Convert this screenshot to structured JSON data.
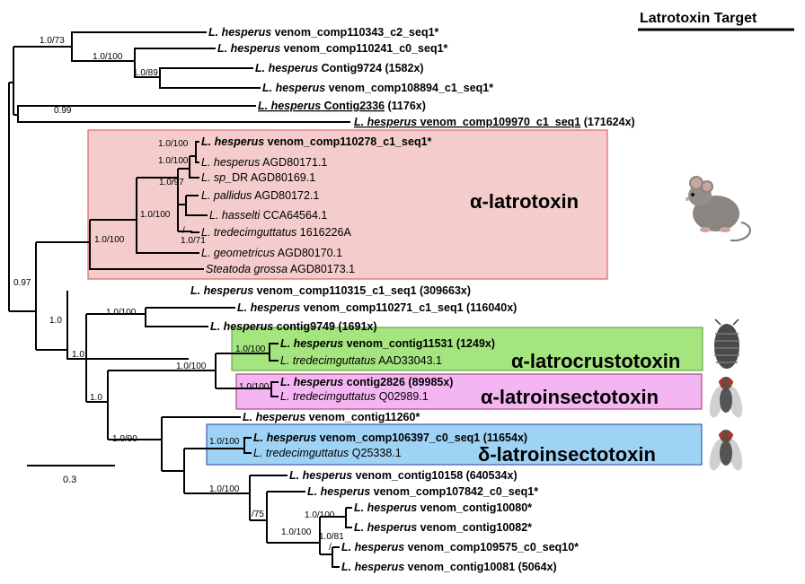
{
  "title": "Latrotoxin Target",
  "scale_bar_label": "0.3",
  "leaves": {
    "l01": [
      {
        "t": "L. hesperus",
        "b": true,
        "i": true
      },
      {
        "t": " venom_comp110343_c2_seq1*",
        "b": true
      }
    ],
    "l02": [
      {
        "t": "L. hesperus",
        "b": true,
        "i": true
      },
      {
        "t": " venom_comp110241_c0_seq1*",
        "b": true
      }
    ],
    "l03": [
      {
        "t": "L. hesperus",
        "b": true,
        "i": true
      },
      {
        "t": " Contig9724 (1582x)",
        "b": true
      }
    ],
    "l04": [
      {
        "t": "L. hesperus",
        "b": true,
        "i": true
      },
      {
        "t": " venom_comp108894_c1_seq1*",
        "b": true
      }
    ],
    "l05": [
      {
        "t": "L. hesperus",
        "b": true,
        "i": true,
        "u": true
      },
      {
        "t": " Contig2336",
        "b": true,
        "u": true
      },
      {
        "t": " (1176x)",
        "b": true
      }
    ],
    "l06": [
      {
        "t": "L. hesperus",
        "b": true,
        "i": true,
        "u": true
      },
      {
        "t": " venom_comp109970_c1_seq1",
        "b": true,
        "u": true
      },
      {
        "t": " (171624x)",
        "b": true
      }
    ],
    "l07": [
      {
        "t": "L. hesperus",
        "b": true,
        "i": true
      },
      {
        "t": " venom_comp110278_c1_seq1*",
        "b": true
      }
    ],
    "l08": [
      {
        "t": "L. hesperus",
        "i": true
      },
      {
        "t": " AGD80171.1"
      }
    ],
    "l09": [
      {
        "t": "L. sp_",
        "i": true
      },
      {
        "t": "DR AGD80169.1"
      }
    ],
    "l10": [
      {
        "t": "L. pallidus",
        "i": true
      },
      {
        "t": " AGD80172.1"
      }
    ],
    "l11": [
      {
        "t": "L. hasselti",
        "i": true
      },
      {
        "t": " CCA64564.1"
      }
    ],
    "l12": [
      {
        "t": "L. tredecimguttatus",
        "i": true
      },
      {
        "t": " 1616226A"
      }
    ],
    "l13": [
      {
        "t": "L. geometricus",
        "i": true
      },
      {
        "t": " AGD80170.1"
      }
    ],
    "l14": [
      {
        "t": "Steatoda grossa",
        "i": true
      },
      {
        "t": " AGD80173.1"
      }
    ],
    "l15": [
      {
        "t": "L. hesperus",
        "b": true,
        "i": true
      },
      {
        "t": " venom_comp110315_c1_seq1 (309663x)",
        "b": true
      }
    ],
    "l16": [
      {
        "t": "L. hesperus",
        "b": true,
        "i": true
      },
      {
        "t": " venom_comp110271_c1_seq1 (116040x)",
        "b": true
      }
    ],
    "l17": [
      {
        "t": "L. hesperus",
        "b": true,
        "i": true
      },
      {
        "t": " contig9749 (1691x)",
        "b": true
      }
    ],
    "l18": [
      {
        "t": "L. hesperus",
        "b": true,
        "i": true
      },
      {
        "t": " venom_contig11531 (1249x)",
        "b": true
      }
    ],
    "l19": [
      {
        "t": "L. tredecimguttatus",
        "i": true
      },
      {
        "t": " AAD33043.1"
      }
    ],
    "l20": [
      {
        "t": "L. hesperus",
        "b": true,
        "i": true
      },
      {
        "t": " contig2826 (89985x)",
        "b": true
      }
    ],
    "l21": [
      {
        "t": "L. tredecimguttatus",
        "i": true
      },
      {
        "t": " Q02989.1"
      }
    ],
    "l22": [
      {
        "t": "L. hesperus",
        "b": true,
        "i": true
      },
      {
        "t": " venom_contig11260*",
        "b": true
      }
    ],
    "l23": [
      {
        "t": "L. hesperus",
        "b": true,
        "i": true
      },
      {
        "t": " venom_comp106397_c0_seq1 (11654x)",
        "b": true
      }
    ],
    "l24": [
      {
        "t": "L. tredecimguttatus",
        "i": true
      },
      {
        "t": " Q25338.1"
      }
    ],
    "l25": [
      {
        "t": "L. hesperus",
        "b": true,
        "i": true
      },
      {
        "t": " venom_contig10158 (640534x)",
        "b": true
      }
    ],
    "l26": [
      {
        "t": "L. hesperus",
        "b": true,
        "i": true
      },
      {
        "t": " venom_comp107842_c0_seq1*",
        "b": true
      }
    ],
    "l27": [
      {
        "t": "L. hesperus",
        "b": true,
        "i": true
      },
      {
        "t": " venom_contig10080*",
        "b": true
      }
    ],
    "l28": [
      {
        "t": "L. hesperus",
        "b": true,
        "i": true
      },
      {
        "t": " venom_contig10082*",
        "b": true
      }
    ],
    "l29": [
      {
        "t": "L. hesperus",
        "b": true,
        "i": true
      },
      {
        "t": " venom_comp109575_c0_seq10*",
        "b": true
      }
    ],
    "l30": [
      {
        "t": "L. hesperus",
        "b": true,
        "i": true
      },
      {
        "t": " venom_contig10081 (5064x)",
        "b": true
      }
    ]
  },
  "supports": {
    "s_1073": "1.0/73",
    "s_10100a": "1.0/100",
    "s_1089": "1.0/89",
    "s_099": "0.99",
    "s_097": "0.97",
    "s_10_top": "1.0",
    "s_10_mid": "1.0",
    "s_10_low": "1.0",
    "s_1090": "1.0/90",
    "s_alpha_root": "1.0/100",
    "s_alpha_2": "1.0/100",
    "s_alpha_97": "1.0/97",
    "s_alpha_3": "1.0/100",
    "s_alpha_4": "1.0/100",
    "s_alpha_slash": "/",
    "s_alpha_71": "1.0/71",
    "s_16": "1.0/100",
    "s_crust_insect": "1.0/100",
    "s_crust": "1.0/100",
    "s_insect": "1.0/100",
    "s_delta": "1.0/100",
    "s_low_clade": "1.0/100",
    "s_75": "/75",
    "s_low_2": "1.0/100",
    "s_low_3": "1.0/100",
    "s_low_81": "1.0/81",
    "s_low_slash": "/"
  },
  "groups": [
    {
      "label": "α-latrotoxin",
      "fill": "#f4cccc",
      "stroke": "#e06666"
    },
    {
      "label": "α-latrocrustotoxin",
      "fill": "#a4e57f",
      "stroke": "#6aa84f"
    },
    {
      "label": "α-latroinsectotoxin",
      "fill": "#f4b6f2",
      "stroke": "#a64d79"
    },
    {
      "label": "δ-latroinsectotoxin",
      "fill": "#9fd3f5",
      "stroke": "#3d5aa6"
    }
  ],
  "icons": [
    "mouse-icon",
    "woodlouse-icon",
    "fly-icon",
    "fly-icon"
  ]
}
